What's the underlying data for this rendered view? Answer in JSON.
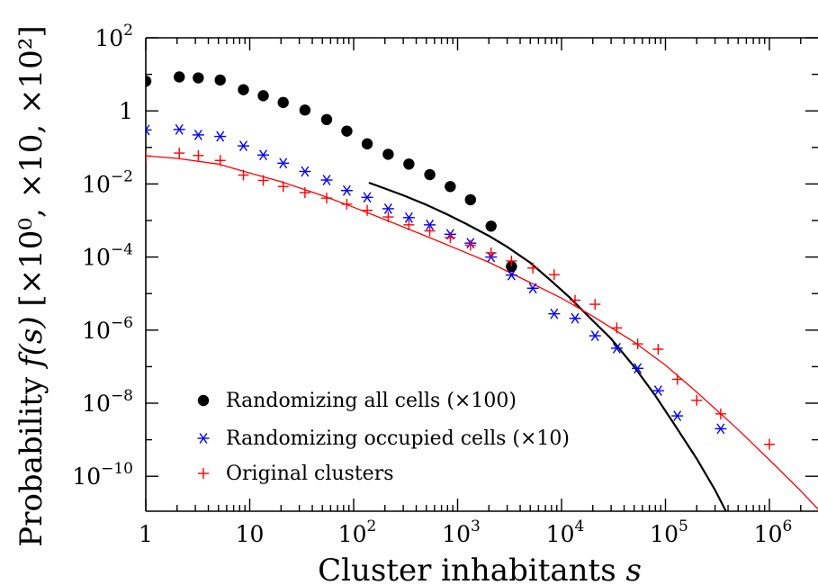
{
  "chart_data": {
    "type": "scatter",
    "xscale": "log",
    "yscale": "log",
    "xlim": [
      1,
      3500000
    ],
    "ylim": [
      1e-11,
      100
    ],
    "xlabel": {
      "text": "Cluster inhabitants",
      "var": "s"
    },
    "ylabel": {
      "prefix": "Probability",
      "func": "f(s)",
      "multipliers": "[×10⁰, ×10, ×10²]"
    },
    "x_ticks": [
      {
        "value": 1,
        "base": "1",
        "exp": ""
      },
      {
        "value": 10,
        "base": "10",
        "exp": ""
      },
      {
        "value": 100,
        "base": "10",
        "exp": "2"
      },
      {
        "value": 1000,
        "base": "10",
        "exp": "3"
      },
      {
        "value": 10000,
        "base": "10",
        "exp": "4"
      },
      {
        "value": 100000,
        "base": "10",
        "exp": "5"
      },
      {
        "value": 1000000,
        "base": "10",
        "exp": "6"
      }
    ],
    "y_ticks": [
      {
        "value": 100,
        "base": "10",
        "exp": "2"
      },
      {
        "value": 1,
        "base": "1",
        "exp": ""
      },
      {
        "value": 0.01,
        "base": "10",
        "exp": "−2"
      },
      {
        "value": 0.0001,
        "base": "10",
        "exp": "−4"
      },
      {
        "value": 1e-06,
        "base": "10",
        "exp": "−6"
      },
      {
        "value": 1e-08,
        "base": "10",
        "exp": "−8"
      },
      {
        "value": 1e-10,
        "base": "10",
        "exp": "−10"
      }
    ],
    "legend_position": "bottom-left",
    "series": [
      {
        "name": "Randomizing all cells (×100)",
        "marker": "circle",
        "color": "#000000",
        "points": [
          [
            1,
            6.5
          ],
          [
            2.1,
            8.5
          ],
          [
            3.2,
            8.0
          ],
          [
            5.2,
            7.0
          ],
          [
            8.7,
            3.8
          ],
          [
            13.5,
            2.6
          ],
          [
            21,
            1.7
          ],
          [
            34,
            1.05
          ],
          [
            55,
            0.58
          ],
          [
            86,
            0.28
          ],
          [
            135,
            0.125
          ],
          [
            215,
            0.065
          ],
          [
            340,
            0.035
          ],
          [
            540,
            0.018
          ],
          [
            850,
            0.0085
          ],
          [
            1330,
            0.0037
          ],
          [
            2100,
            0.0007
          ],
          [
            3300,
            5.5e-05
          ]
        ]
      },
      {
        "name": "Randomizing occupied cells (×10)",
        "marker": "asterisk",
        "color": "#0000ff",
        "points": [
          [
            1,
            0.3
          ],
          [
            2.1,
            0.31
          ],
          [
            3.2,
            0.22
          ],
          [
            5.2,
            0.2
          ],
          [
            8.7,
            0.11
          ],
          [
            13.5,
            0.062
          ],
          [
            21,
            0.037
          ],
          [
            34,
            0.022
          ],
          [
            55,
            0.0128
          ],
          [
            86,
            0.0066
          ],
          [
            135,
            0.0043
          ],
          [
            215,
            0.0021
          ],
          [
            340,
            0.0012
          ],
          [
            540,
            0.00076
          ],
          [
            850,
            0.00042
          ],
          [
            1330,
            0.00024
          ],
          [
            2100,
            0.0001
          ],
          [
            3300,
            3.2e-05
          ],
          [
            5300,
            1.4e-05
          ],
          [
            8500,
            2.8e-06
          ],
          [
            13500,
            2.1e-06
          ],
          [
            21000,
            7e-07
          ],
          [
            34000,
            3.2e-07
          ],
          [
            54000,
            9e-08
          ],
          [
            85000,
            2.2e-08
          ],
          [
            130000,
            4.5e-09
          ],
          [
            340000,
            2e-09
          ]
        ]
      },
      {
        "name": "Original clusters",
        "marker": "plus",
        "color": "#ff0000",
        "points": [
          [
            1,
            0.058
          ],
          [
            2.1,
            0.07
          ],
          [
            3.2,
            0.06
          ],
          [
            5.2,
            0.044
          ],
          [
            8.7,
            0.0175
          ],
          [
            13.5,
            0.0125
          ],
          [
            21,
            0.0085
          ],
          [
            34,
            0.0058
          ],
          [
            55,
            0.0041
          ],
          [
            86,
            0.0028
          ],
          [
            135,
            0.0019
          ],
          [
            215,
            0.00125
          ],
          [
            340,
            0.00076
          ],
          [
            540,
            0.00052
          ],
          [
            850,
            0.00034
          ],
          [
            1330,
            0.00021
          ],
          [
            2100,
            0.00013
          ],
          [
            3300,
            7.8e-05
          ],
          [
            5300,
            5e-05
          ],
          [
            8500,
            3.3e-05
          ],
          [
            13500,
            6.6e-06
          ],
          [
            21000,
            5.1e-06
          ],
          [
            34000,
            1.15e-06
          ],
          [
            54000,
            4.2e-07
          ],
          [
            85000,
            3e-07
          ],
          [
            130000,
            4.5e-08
          ],
          [
            200000,
            1.2e-08
          ],
          [
            340000,
            5.1e-09
          ],
          [
            1000000,
            7.5e-10
          ]
        ]
      }
    ],
    "fits": [
      {
        "color": "#000000",
        "points": [
          [
            140,
            0.0108
          ],
          [
            200,
            0.0075
          ],
          [
            300,
            0.0049
          ],
          [
            500,
            0.0027
          ],
          [
            800,
            0.00145
          ],
          [
            1200,
            0.00082
          ],
          [
            2000,
            0.00038
          ],
          [
            3000,
            0.00019
          ],
          [
            5000,
            7e-05
          ],
          [
            8000,
            2.2e-05
          ],
          [
            12000,
            7.8e-06
          ],
          [
            20000,
            1.8e-06
          ],
          [
            30000,
            5.8e-07
          ],
          [
            50000,
            1e-07
          ],
          [
            80000,
            1.6e-08
          ],
          [
            120000,
            2.8e-09
          ],
          [
            200000,
            3e-10
          ],
          [
            300000,
            4.2e-11
          ],
          [
            500000,
            2.5e-12
          ],
          [
            720000,
            2.5e-13
          ]
        ]
      },
      {
        "color": "#ff0000",
        "points": [
          [
            1,
            0.059
          ],
          [
            2,
            0.05
          ],
          [
            5,
            0.035
          ],
          [
            10,
            0.02
          ],
          [
            20,
            0.0115
          ],
          [
            50,
            0.0048
          ],
          [
            100,
            0.0023
          ],
          [
            200,
            0.00106
          ],
          [
            500,
            0.00037
          ],
          [
            1000,
            0.000165
          ],
          [
            2000,
            7.2e-05
          ],
          [
            5000,
            2e-05
          ],
          [
            10000,
            7.5e-06
          ],
          [
            20000,
            2.4e-06
          ],
          [
            50000,
            4.7e-07
          ],
          [
            100000,
            1.1e-07
          ],
          [
            200000,
            2e-08
          ],
          [
            500000,
            1.9e-09
          ],
          [
            1000000,
            2.8e-10
          ],
          [
            2000000,
            4e-11
          ],
          [
            3500000,
            7.5e-12
          ]
        ]
      }
    ]
  }
}
